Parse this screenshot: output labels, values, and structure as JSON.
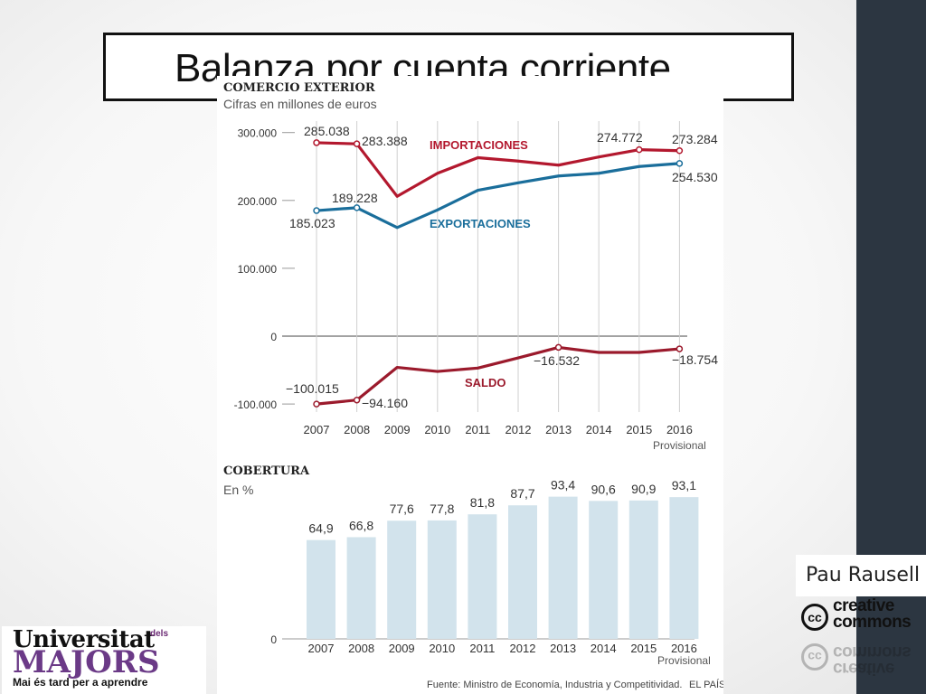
{
  "slide": {
    "title": "Balanza por cuenta corriente",
    "author": "Pau Rausell",
    "cc_logo": {
      "line1": "creative",
      "line2": "commons",
      "symbol": "cc"
    },
    "university_logo": {
      "name": "Universitat",
      "dels": "dels",
      "majors": "MAJORS",
      "motto": "Mai és tard per a aprendre"
    }
  },
  "chart_data": [
    {
      "type": "line",
      "title": "COMERCIO EXTERIOR",
      "subtitle": "Cifras en millones de euros",
      "x": [
        "2007",
        "2008",
        "2009",
        "2010",
        "2011",
        "2012",
        "2013",
        "2014",
        "2015",
        "2016"
      ],
      "x_sublabel": {
        "2016": "Provisional"
      },
      "ylim": [
        -100000,
        300000
      ],
      "yticks": [
        -100000,
        0,
        100000,
        200000,
        300000
      ],
      "ytick_labels": [
        "-100.000",
        "0",
        "100.000",
        "200.000",
        "300.000"
      ],
      "grid": true,
      "series": [
        {
          "name": "IMPORTACIONES",
          "color": "#b3182e",
          "values": [
            285038,
            283388,
            206000,
            240000,
            263000,
            258000,
            252000,
            264000,
            274772,
            273284
          ],
          "labels": {
            "2007": "285.038",
            "2008": "283.388",
            "2015": "274.772",
            "2016": "273.284"
          }
        },
        {
          "name": "EXPORTACIONES",
          "color": "#1a6e9b",
          "values": [
            185023,
            189228,
            160000,
            186000,
            215000,
            226000,
            236000,
            240000,
            250000,
            254530
          ],
          "labels": {
            "2007": "185.023",
            "2008": "189.228",
            "2016": "254.530"
          }
        },
        {
          "name": "SALDO",
          "color": "#9b1a2c",
          "values": [
            -100015,
            -94160,
            -46000,
            -52000,
            -47000,
            -32000,
            -16532,
            -24000,
            -24000,
            -18754
          ],
          "labels": {
            "2007": "−100.015",
            "2008": "−94.160",
            "2013": "−16.532",
            "2016": "−18.754"
          }
        }
      ]
    },
    {
      "type": "bar",
      "title": "COBERTURA",
      "subtitle": "En %",
      "categories": [
        "2007",
        "2008",
        "2009",
        "2010",
        "2011",
        "2012",
        "2013",
        "2014",
        "2015",
        "2016"
      ],
      "x_sublabel": {
        "2016": "Provisional"
      },
      "values": [
        64.9,
        66.8,
        77.6,
        77.8,
        81.8,
        87.7,
        93.4,
        90.6,
        90.9,
        93.1
      ],
      "value_labels": [
        "64,9",
        "66,8",
        "77,6",
        "77,8",
        "81,8",
        "87,7",
        "93,4",
        "90,6",
        "90,9",
        "93,1"
      ],
      "ylim": [
        0,
        100
      ],
      "baseline_label": "0",
      "color": "#d2e3ec"
    }
  ],
  "source": "Fuente: Ministro de Economía, Industria y Competitividad.",
  "publisher": "EL PAÍS"
}
